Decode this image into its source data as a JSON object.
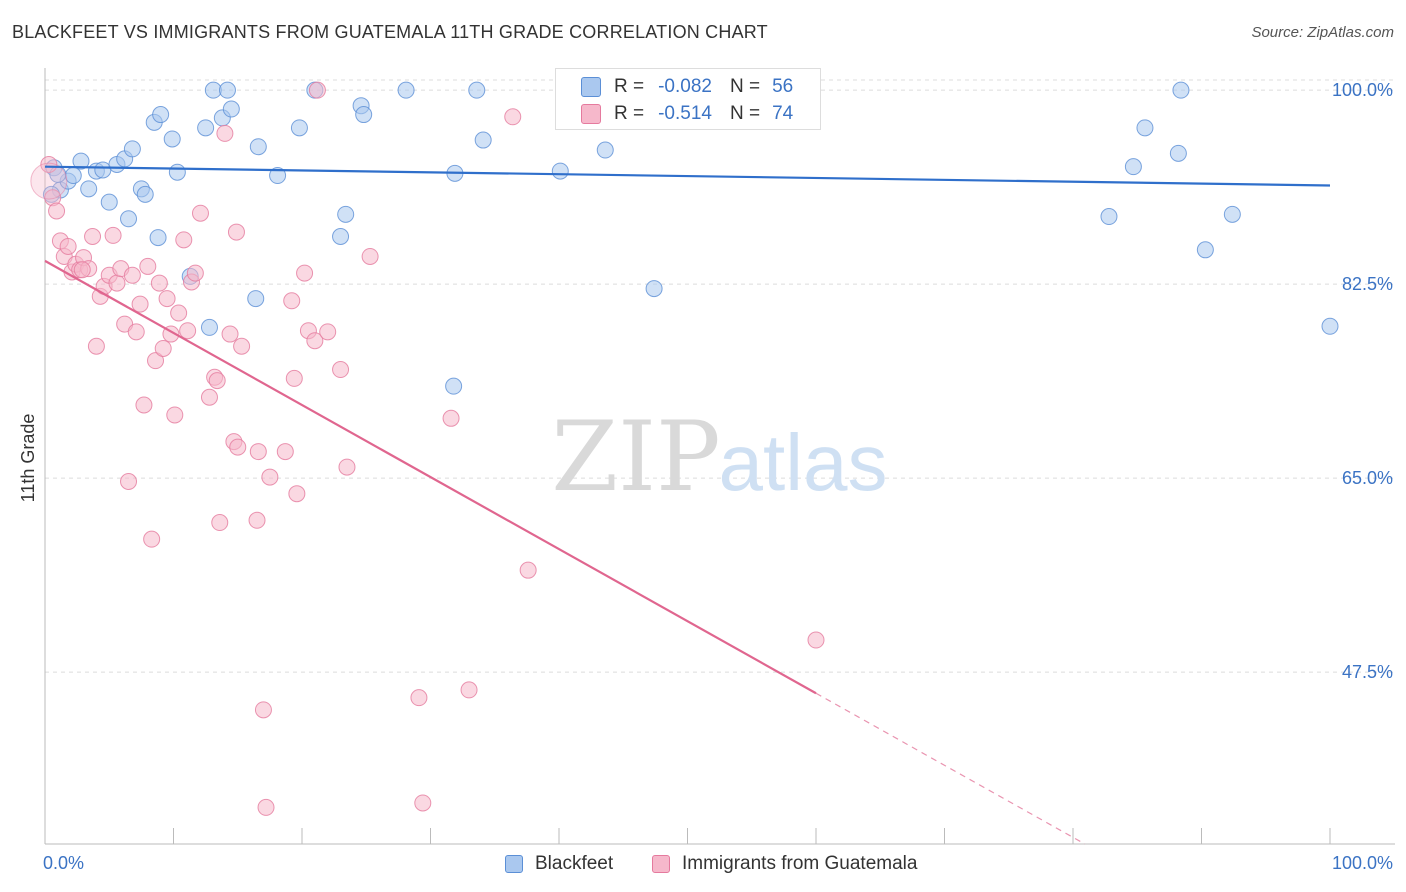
{
  "title": "BLACKFEET VS IMMIGRANTS FROM GUATEMALA 11TH GRADE CORRELATION CHART",
  "source": "Source: ZipAtlas.com",
  "watermark": {
    "zip": "ZIP",
    "atlas": "atlas"
  },
  "colors": {
    "blue_fill": "#aac8ef",
    "blue_stroke": "#5b8fd6",
    "blue_line": "#2f6fcb",
    "pink_fill": "#f6b8cb",
    "pink_stroke": "#e57a9e",
    "pink_line": "#e0668f",
    "tick_label": "#3b73c4",
    "grid": "#dcdcdc"
  },
  "stats": [
    {
      "r_label": "R =",
      "r_value": "-0.082",
      "n_label": "N =",
      "n_value": "56",
      "color": "#aac8ef"
    },
    {
      "r_label": "R =",
      "r_value": "-0.514",
      "n_label": "N =",
      "n_value": "74",
      "color": "#f6b8cb"
    }
  ],
  "chart_data": {
    "type": "scatter",
    "title": "BLACKFEET VS IMMIGRANTS FROM GUATEMALA 11TH GRADE CORRELATION CHART",
    "xlabel": "",
    "ylabel": "11th Grade",
    "xlim": [
      0,
      100
    ],
    "ylim": [
      32,
      102
    ],
    "x_tick_labels": [
      "0.0%",
      "100.0%"
    ],
    "y_ticks": [
      47.5,
      65.0,
      82.5,
      100.0
    ],
    "y_tick_labels": [
      "47.5%",
      "65.0%",
      "82.5%",
      "100.0%"
    ],
    "grid": true,
    "legend_position": "bottom",
    "series": [
      {
        "name": "Blackfeet",
        "color": "#aac8ef",
        "trend": {
          "x0": 0,
          "y0": 93.1,
          "x1": 100,
          "y1": 91.4
        },
        "points": [
          [
            0.7,
            93.0
          ],
          [
            1.2,
            91.0
          ],
          [
            1.8,
            91.8
          ],
          [
            2.2,
            92.3
          ],
          [
            2.8,
            93.6
          ],
          [
            3.4,
            91.1
          ],
          [
            4.0,
            92.7
          ],
          [
            4.5,
            92.8
          ],
          [
            5.0,
            89.9
          ],
          [
            5.6,
            93.3
          ],
          [
            6.2,
            93.8
          ],
          [
            6.5,
            88.4
          ],
          [
            6.8,
            94.7
          ],
          [
            7.5,
            91.1
          ],
          [
            7.8,
            90.6
          ],
          [
            8.5,
            97.1
          ],
          [
            8.8,
            86.7
          ],
          [
            9.0,
            97.8
          ],
          [
            9.9,
            95.6
          ],
          [
            10.3,
            92.6
          ],
          [
            11.3,
            83.2
          ],
          [
            12.5,
            96.6
          ],
          [
            12.8,
            78.6
          ],
          [
            13.1,
            100.0
          ],
          [
            13.8,
            97.5
          ],
          [
            14.2,
            100.0
          ],
          [
            14.5,
            98.3
          ],
          [
            16.4,
            81.2
          ],
          [
            16.6,
            94.9
          ],
          [
            18.1,
            92.3
          ],
          [
            19.8,
            96.6
          ],
          [
            21.0,
            100.0
          ],
          [
            23.0,
            86.8
          ],
          [
            23.4,
            88.8
          ],
          [
            24.6,
            98.6
          ],
          [
            24.8,
            97.8
          ],
          [
            28.1,
            100.0
          ],
          [
            31.8,
            73.3
          ],
          [
            31.9,
            92.5
          ],
          [
            33.6,
            100.0
          ],
          [
            34.1,
            95.5
          ],
          [
            40.1,
            92.7
          ],
          [
            43.6,
            94.6
          ],
          [
            47.2,
            100.0
          ],
          [
            47.4,
            82.1
          ],
          [
            49.2,
            100.0
          ],
          [
            82.8,
            88.6
          ],
          [
            84.7,
            93.1
          ],
          [
            85.6,
            96.6
          ],
          [
            88.2,
            94.3
          ],
          [
            88.4,
            100.0
          ],
          [
            90.3,
            85.6
          ],
          [
            92.4,
            88.8
          ],
          [
            100.0,
            78.7
          ],
          [
            0.5,
            90.6
          ],
          [
            1.0,
            92.4
          ]
        ]
      },
      {
        "name": "Immigrants from Guatemala",
        "color": "#f6b8cb",
        "trend": {
          "x0": 0,
          "y0": 84.6,
          "x1": 60,
          "y1": 45.6,
          "dash_to_x": 100
        },
        "points": [
          [
            0.3,
            93.3
          ],
          [
            0.6,
            90.3
          ],
          [
            0.9,
            89.1
          ],
          [
            1.2,
            86.4
          ],
          [
            1.5,
            85.0
          ],
          [
            1.8,
            85.9
          ],
          [
            2.1,
            83.6
          ],
          [
            2.4,
            84.3
          ],
          [
            2.7,
            83.8
          ],
          [
            3.0,
            84.9
          ],
          [
            3.4,
            83.9
          ],
          [
            3.7,
            86.8
          ],
          [
            4.0,
            76.9
          ],
          [
            4.3,
            81.4
          ],
          [
            4.6,
            82.3
          ],
          [
            5.0,
            83.3
          ],
          [
            5.3,
            86.9
          ],
          [
            5.6,
            82.6
          ],
          [
            5.9,
            83.9
          ],
          [
            6.2,
            78.9
          ],
          [
            6.5,
            64.7
          ],
          [
            6.8,
            83.3
          ],
          [
            7.1,
            78.2
          ],
          [
            7.4,
            80.7
          ],
          [
            7.7,
            71.6
          ],
          [
            8.0,
            84.1
          ],
          [
            8.3,
            59.5
          ],
          [
            8.6,
            75.6
          ],
          [
            8.9,
            82.6
          ],
          [
            9.2,
            76.7
          ],
          [
            9.5,
            81.2
          ],
          [
            9.8,
            78.0
          ],
          [
            10.1,
            70.7
          ],
          [
            10.4,
            79.9
          ],
          [
            10.8,
            86.5
          ],
          [
            11.1,
            78.3
          ],
          [
            11.4,
            82.7
          ],
          [
            11.7,
            83.5
          ],
          [
            12.1,
            88.9
          ],
          [
            12.8,
            72.3
          ],
          [
            13.2,
            74.1
          ],
          [
            13.4,
            73.8
          ],
          [
            13.6,
            61.0
          ],
          [
            14.0,
            96.1
          ],
          [
            14.4,
            78.0
          ],
          [
            14.7,
            68.3
          ],
          [
            14.9,
            87.2
          ],
          [
            15.0,
            67.8
          ],
          [
            15.3,
            76.9
          ],
          [
            16.5,
            61.2
          ],
          [
            16.6,
            67.4
          ],
          [
            17.0,
            44.1
          ],
          [
            17.2,
            35.3
          ],
          [
            17.5,
            65.1
          ],
          [
            18.7,
            67.4
          ],
          [
            19.2,
            81.0
          ],
          [
            19.4,
            74.0
          ],
          [
            19.6,
            63.6
          ],
          [
            20.2,
            83.5
          ],
          [
            20.5,
            78.3
          ],
          [
            21.0,
            77.4
          ],
          [
            21.2,
            100.0
          ],
          [
            22.0,
            78.2
          ],
          [
            23.0,
            74.8
          ],
          [
            23.5,
            66.0
          ],
          [
            25.3,
            85.0
          ],
          [
            29.1,
            45.2
          ],
          [
            29.4,
            35.7
          ],
          [
            31.6,
            70.4
          ],
          [
            33.0,
            45.9
          ],
          [
            36.4,
            97.6
          ],
          [
            37.6,
            56.7
          ],
          [
            60.0,
            50.4
          ],
          [
            2.9,
            83.8
          ]
        ]
      }
    ]
  }
}
